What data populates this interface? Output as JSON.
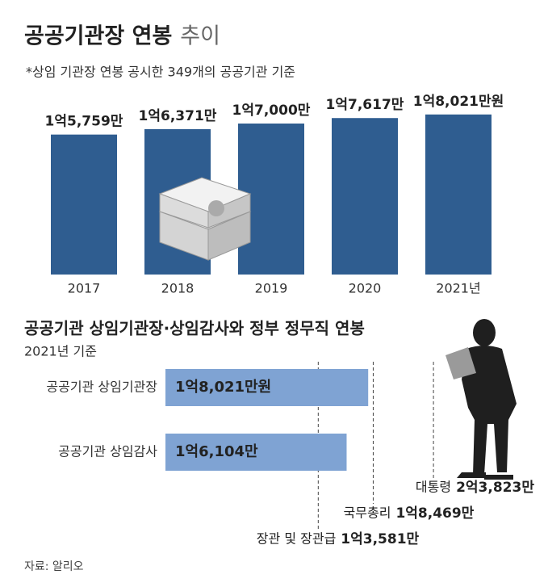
{
  "chart_data": [
    {
      "type": "bar",
      "title_bold": "공공기관장 연봉",
      "title_light": "추이",
      "subtitle": "*상임 기관장 연봉 공시한 349개의 공공기관 기준",
      "categories": [
        "2017",
        "2018",
        "2019",
        "2020",
        "2021년"
      ],
      "values": [
        15759,
        16371,
        17000,
        17617,
        18021
      ],
      "value_labels": [
        "1억5,759만",
        "1억6,371만",
        "1억7,000만",
        "1억7,617만",
        "1억8,021만원"
      ],
      "color": "#2f5d90",
      "ylim": [
        0,
        20000
      ]
    },
    {
      "type": "bar",
      "orientation": "horizontal",
      "title": "공공기관 상임기관장·상임감사와 정부 정무직 연봉",
      "subtitle": "2021년 기준",
      "categories": [
        "공공기관 상임기관장",
        "공공기관 상임감사"
      ],
      "values": [
        18021,
        16104
      ],
      "value_labels": [
        "1억8,021만원",
        "1억6,104만"
      ],
      "color": "#7fa3d3",
      "xlim": [
        0,
        33000
      ],
      "references": [
        {
          "name": "장관 및 장관급",
          "value": 13581,
          "value_label": "1억3,581만"
        },
        {
          "name": "국무총리",
          "value": 18469,
          "value_label": "1억8,469만"
        },
        {
          "name": "대통령",
          "value": 23823,
          "value_label": "2억3,823만"
        }
      ]
    }
  ],
  "source": "자료: 알리오"
}
